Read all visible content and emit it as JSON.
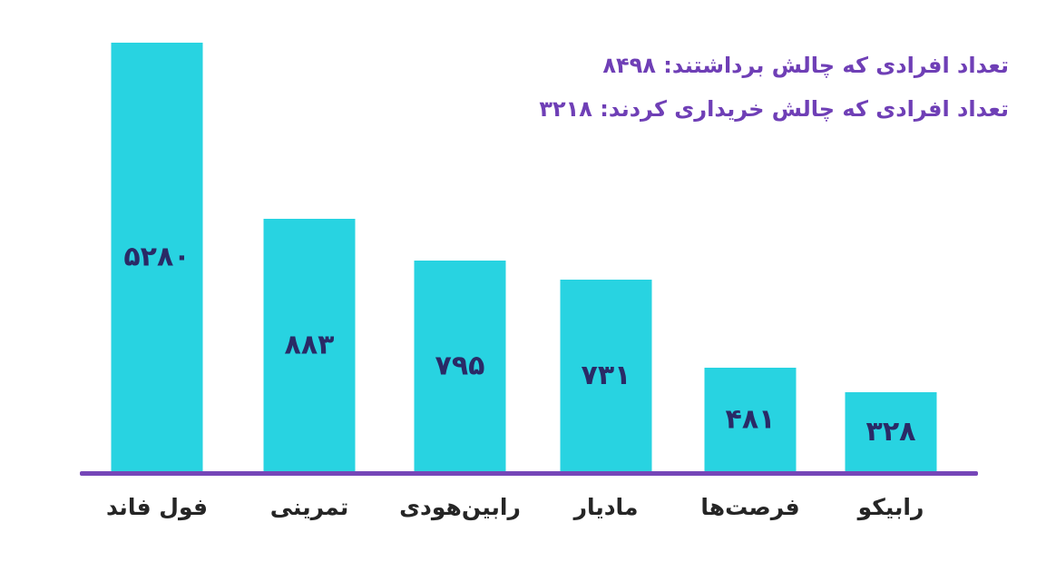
{
  "colors": {
    "bar": "#28d3e1",
    "axis": "#7646b8",
    "value_label": "#2a2a66",
    "category_label": "#252525",
    "annotation": "#6f3fb6"
  },
  "chart_data": {
    "type": "bar",
    "title": "",
    "xlabel": "",
    "ylabel": "",
    "grid": false,
    "categories": [
      "فول فاند",
      "تمرینی",
      "رابین‌هودی",
      "مادیار",
      "فرصت‌ها",
      "رابیکو"
    ],
    "values": [
      5280,
      883,
      795,
      731,
      481,
      328
    ],
    "value_labels": [
      "۵۲۸۰",
      "۸۸۳",
      "۷۹۵",
      "۷۳۱",
      "۴۸۱",
      "۳۲۸"
    ],
    "annotations": [
      "تعداد افرادی که چالش برداشتند: ۸۴۹۸",
      "تعداد افرادی که چالش خریداری کردند: ۳۲۱۸"
    ]
  }
}
